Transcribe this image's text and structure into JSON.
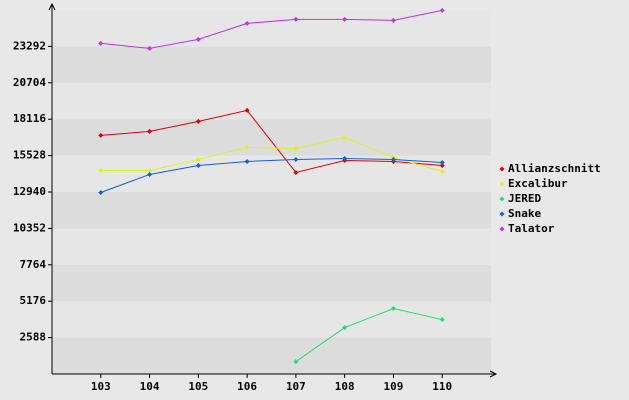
{
  "chart_data": {
    "type": "line",
    "x": [
      103,
      104,
      105,
      106,
      107,
      108,
      109,
      110
    ],
    "xlim": [
      102,
      111
    ],
    "xticks": [
      103,
      104,
      105,
      106,
      107,
      108,
      109,
      110
    ],
    "ylim": [
      0,
      25880
    ],
    "yticks": [
      2588,
      5176,
      7764,
      10352,
      12940,
      15528,
      18116,
      20704,
      23292
    ],
    "legend": "right",
    "series": [
      {
        "name": "Allianzschnitt",
        "color": "#e00000",
        "values": [
          16962,
          17247,
          17958,
          18741,
          14330,
          15183,
          15112,
          14827
        ]
      },
      {
        "name": "Excalibur",
        "color": "#e0f020",
        "values": [
          14472,
          14472,
          15254,
          16108,
          16037,
          16819,
          15396,
          14401
        ]
      },
      {
        "name": "JERED",
        "color": "#20e070",
        "values": [
          null,
          null,
          null,
          null,
          882,
          3301,
          4653,
          3870
        ]
      },
      {
        "name": "Snake",
        "color": "#1060e0",
        "values": [
          12906,
          14187,
          14827,
          15112,
          15254,
          15325,
          15254,
          15040
        ]
      },
      {
        "name": "Talator",
        "color": "#c030f0",
        "values": [
          23506,
          23150,
          23791,
          24929,
          25213,
          25213,
          25142,
          25854
        ]
      }
    ]
  }
}
